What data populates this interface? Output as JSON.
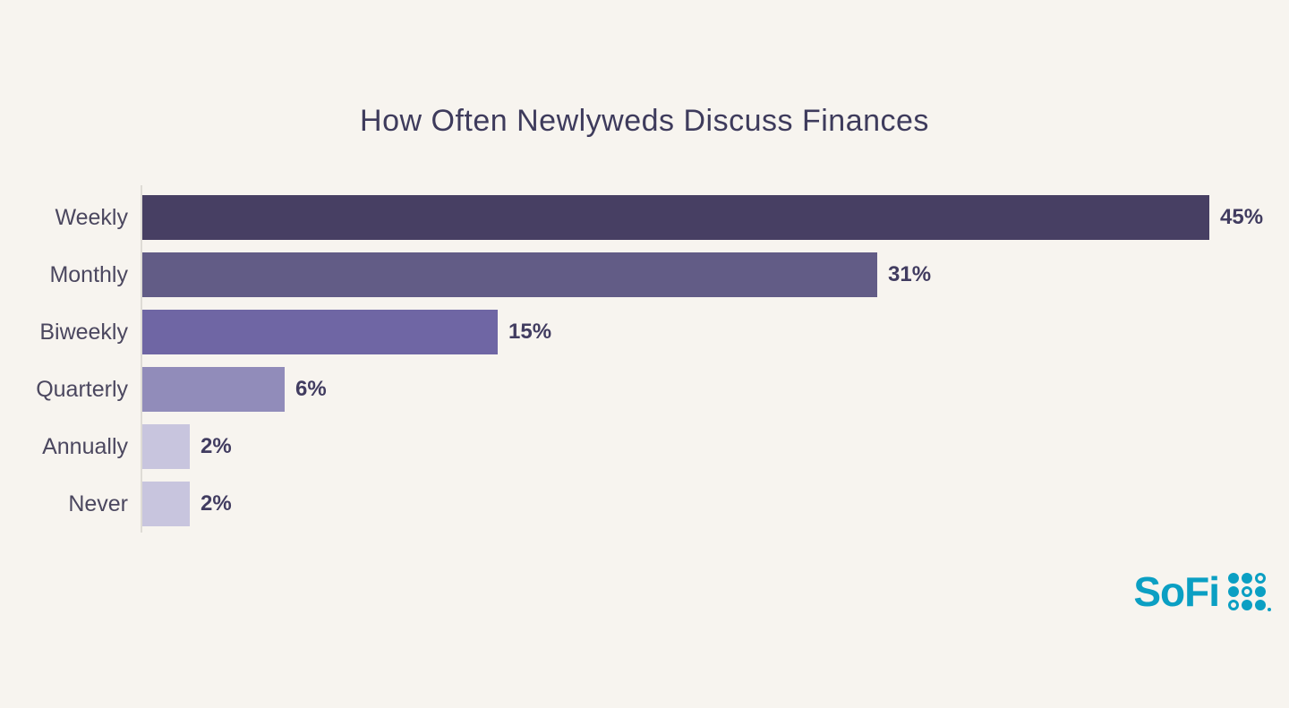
{
  "title": "How Often Newlyweds Discuss Finances",
  "chart_data": {
    "type": "bar",
    "orientation": "horizontal",
    "title": "How Often Newlyweds Discuss Finances",
    "categories": [
      "Weekly",
      "Monthly",
      "Biweekly",
      "Quarterly",
      "Annually",
      "Never"
    ],
    "values": [
      45,
      31,
      15,
      6,
      2,
      2
    ],
    "value_labels": [
      "45%",
      "31%",
      "15%",
      "6%",
      "2%",
      "2%"
    ],
    "xlabel": "",
    "ylabel": "",
    "xlim": [
      0,
      45
    ],
    "grid": false,
    "legend": false,
    "bar_colors": [
      "#473f63",
      "#625c86",
      "#6f66a4",
      "#918cba",
      "#c8c5de",
      "#c8c5de"
    ]
  },
  "colors": {
    "background": "#f7f4ef",
    "title": "#3e3b5c",
    "category_label": "#4b475f",
    "value_label": "#413c60",
    "axis_line": "#dedbd5",
    "brand_teal": "#0b9fc3"
  },
  "branding": {
    "logo_text": "SoFi",
    "dot_grid": [
      [
        "filled",
        "filled",
        "outline"
      ],
      [
        "filled",
        "outline",
        "filled"
      ],
      [
        "outline",
        "filled",
        "filled"
      ]
    ]
  }
}
